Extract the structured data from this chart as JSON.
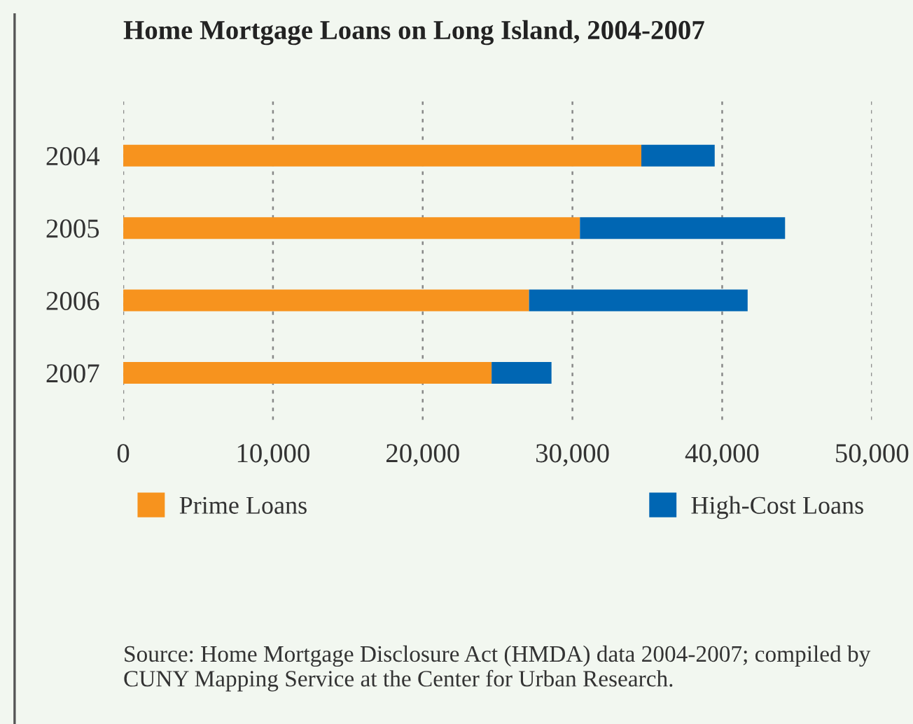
{
  "chart_data": {
    "type": "bar",
    "orientation": "horizontal",
    "stacked": true,
    "title": "Home Mortgage Loans on Long Island, 2004-2007",
    "categories": [
      "2004",
      "2005",
      "2006",
      "2007"
    ],
    "series": [
      {
        "name": "Prime Loans",
        "color": "#f7931e",
        "values": [
          34600,
          30500,
          27100,
          24600
        ]
      },
      {
        "name": "High-Cost Loans",
        "color": "#0066b3",
        "values": [
          4900,
          13700,
          14600,
          4000
        ]
      }
    ],
    "xlim": [
      0,
      50000
    ],
    "xticks": [
      0,
      {
        "value": 10000,
        "label": "10,000"
      },
      {
        "value": 20000,
        "label": "20,000"
      },
      {
        "value": 30000,
        "label": "30,000"
      },
      {
        "value": 40000,
        "label": "40,000"
      },
      {
        "value": 50000,
        "label": "50,000"
      }
    ],
    "grid": "x",
    "legend": "bottom",
    "annotations": [
      "Source: Home Mortgage Disclosure Act (HMDA) data 2004-2007; compiled by CUNY Mapping Service at the Center for Urban Research."
    ]
  }
}
